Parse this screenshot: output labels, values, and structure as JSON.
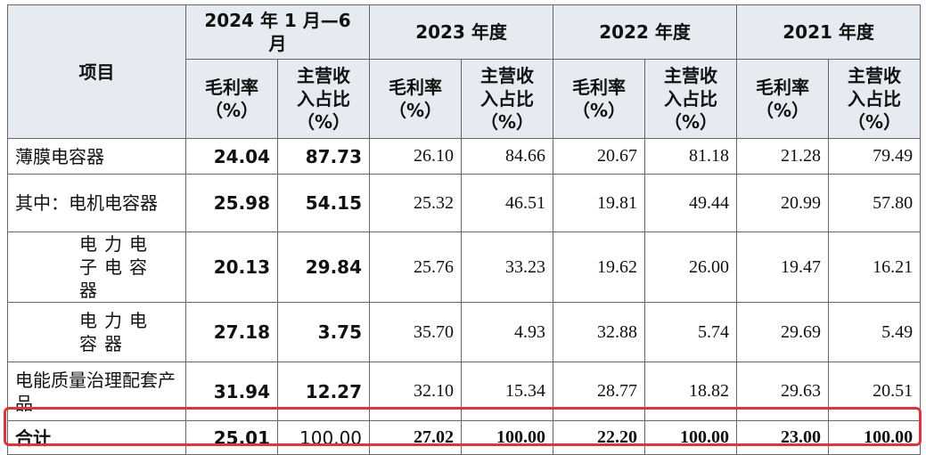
{
  "table": {
    "header": {
      "item": "项目",
      "periods": [
        "2024 年 1 月—6 月",
        "2023 年度",
        "2022 年度",
        "2021 年度"
      ],
      "metrics": [
        "毛利率\n（%）",
        "主营收\n入占比\n（%）",
        "毛利率\n（%）",
        "主营收\n入占比\n（%）",
        "毛利率\n（%）",
        "主营收\n入占比\n（%）",
        "毛利率\n（%）",
        "主营收\n入占比\n（%）"
      ]
    },
    "rows": [
      {
        "label": "薄膜电容器",
        "values": [
          "24.04",
          "87.73",
          "26.10",
          "84.66",
          "20.67",
          "81.18",
          "21.28",
          "79.49"
        ]
      },
      {
        "label": "其中：电机电容器",
        "values": [
          "25.98",
          "54.15",
          "25.32",
          "46.51",
          "19.81",
          "49.44",
          "20.99",
          "57.80"
        ]
      },
      {
        "label": "电力电子电容器",
        "values": [
          "20.13",
          "29.84",
          "25.76",
          "33.23",
          "19.62",
          "26.00",
          "19.47",
          "16.21"
        ]
      },
      {
        "label": "电力电容器",
        "values": [
          "27.18",
          "3.75",
          "35.70",
          "4.93",
          "32.88",
          "5.74",
          "29.69",
          "5.49"
        ]
      },
      {
        "label": "电能质量治理配套产品",
        "values": [
          "31.94",
          "12.27",
          "32.10",
          "15.34",
          "28.77",
          "18.82",
          "29.63",
          "20.51"
        ]
      }
    ],
    "total": {
      "label": "合计",
      "values": [
        "25.01",
        "100.00",
        "27.02",
        "100.00",
        "22.20",
        "100.00",
        "23.00",
        "100.00"
      ]
    }
  }
}
